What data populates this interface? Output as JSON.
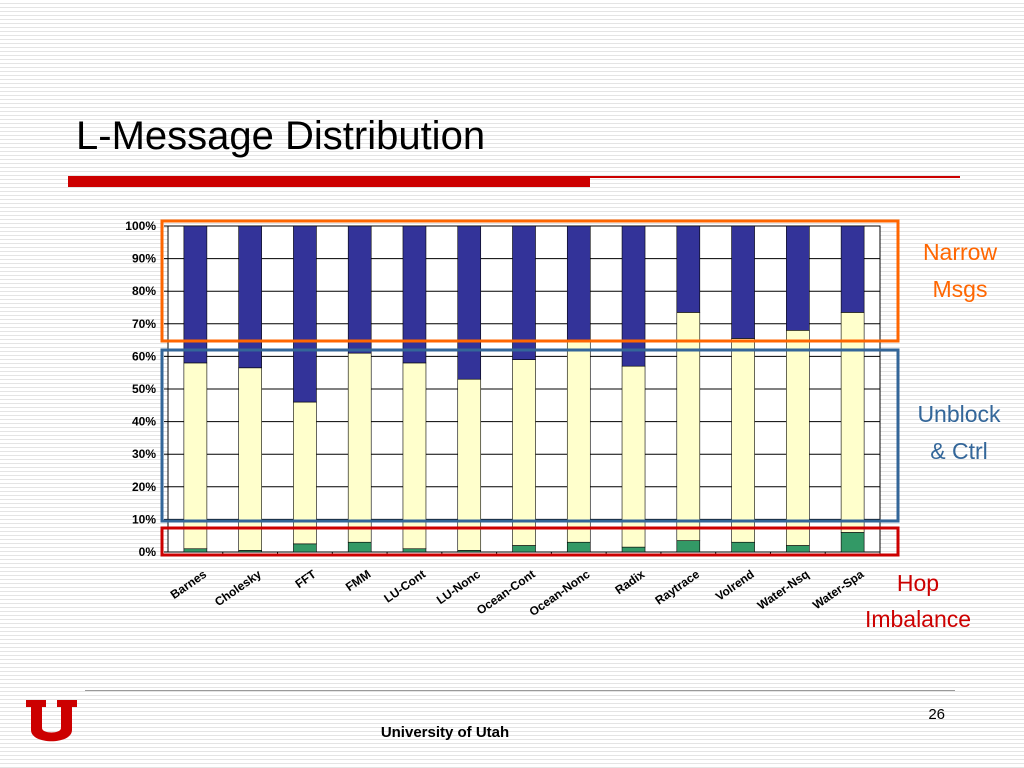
{
  "slide": {
    "title": "L-Message Distribution",
    "footer": "University of Utah",
    "page_number": "26"
  },
  "annotations": {
    "narrow": [
      "Narrow",
      "Msgs"
    ],
    "unblock": [
      "Unblock",
      "& Ctrl"
    ],
    "hop": [
      "Hop",
      "Imbalance"
    ]
  },
  "colors": {
    "title_bar": "#cc0000",
    "narrow_box": "#ff6600",
    "unblock_box": "#336699",
    "hop_box": "#cc0000"
  },
  "chart_data": {
    "type": "bar",
    "stacked": true,
    "percent": true,
    "categories": [
      "Barnes",
      "Cholesky",
      "FFT",
      "FMM",
      "LU-Cont",
      "LU-Nonc",
      "Ocean-Cont",
      "Ocean-Nonc",
      "Radix",
      "Raytrace",
      "Volrend",
      "Water-Nsq",
      "Water-Spa"
    ],
    "series": [
      {
        "color": "#339966",
        "values": [
          1,
          0.5,
          2.5,
          3,
          1,
          0.5,
          2,
          3,
          1.5,
          3.5,
          3,
          2,
          6
        ]
      },
      {
        "color": "#ffffcc",
        "values": [
          57,
          56,
          43.5,
          58,
          57,
          52.5,
          57,
          62,
          55.5,
          70,
          62.5,
          66,
          67.5
        ]
      },
      {
        "color": "#333399",
        "values": [
          42,
          43.5,
          54,
          39,
          42,
          47,
          41,
          35,
          43,
          26.5,
          34.5,
          32,
          26.5
        ]
      }
    ],
    "yticks": [
      "0%",
      "10%",
      "20%",
      "30%",
      "40%",
      "50%",
      "60%",
      "70%",
      "80%",
      "90%",
      "100%"
    ],
    "ylim": [
      0,
      100
    ],
    "grid": true
  }
}
